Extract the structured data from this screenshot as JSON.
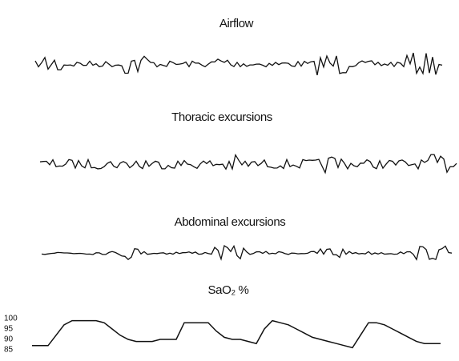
{
  "chart_data": [
    {
      "type": "trace",
      "title": "Airflow"
    },
    {
      "type": "trace",
      "title": "Thoracic excursions"
    },
    {
      "type": "trace",
      "title": "Abdominal excursions"
    },
    {
      "type": "line",
      "title": "SaO₂ %",
      "color": "#111111",
      "ylim": [
        85,
        100
      ],
      "yticks": [
        100,
        95,
        90,
        85
      ],
      "values": [
        87,
        87,
        87,
        92,
        97,
        99,
        99,
        99,
        99,
        98,
        95,
        92,
        90,
        89,
        89,
        89,
        90,
        90,
        90,
        98,
        98,
        98,
        98,
        94,
        91,
        90,
        90,
        89,
        88,
        95,
        99,
        98,
        97,
        95,
        93,
        91,
        90,
        89,
        88,
        87,
        86,
        92,
        98,
        98,
        97,
        95,
        93,
        91,
        89,
        88,
        88,
        88
      ]
    }
  ]
}
